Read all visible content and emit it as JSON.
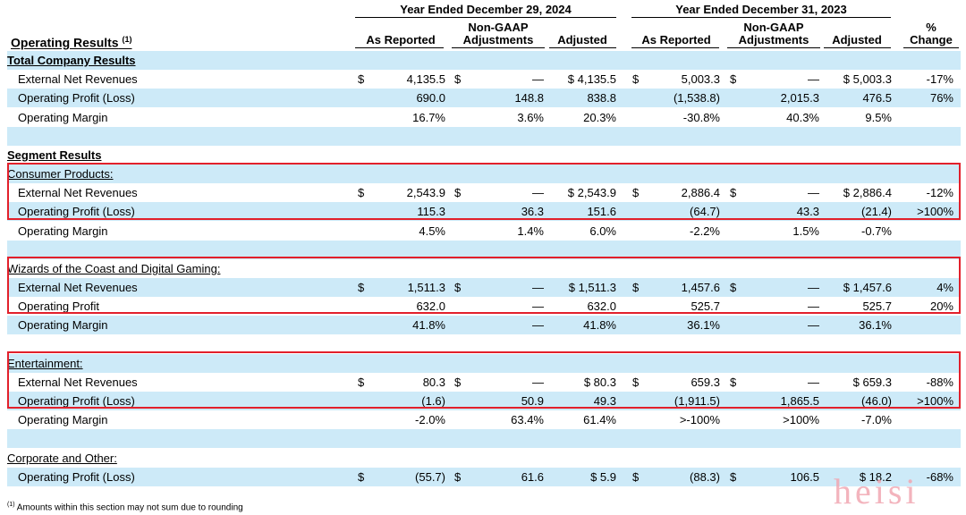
{
  "header": {
    "period_2024": "Year Ended December 29, 2024",
    "period_2023": "Year Ended December 31, 2023",
    "section_title": "Operating Results",
    "section_title_sup": "(1)",
    "col_as_reported": "As Reported",
    "col_non_gaap_line1": "Non-GAAP",
    "col_non_gaap_line2": "Adjustments",
    "col_adjusted": "Adjusted",
    "col_pct_line1": "%",
    "col_pct_line2": "Change"
  },
  "rows": [
    {
      "label": "Total Company Results",
      "style": "section"
    },
    {
      "label": "External Net Revenues",
      "values": [
        "$",
        "4,135.5",
        "$",
        "—",
        "$ 4,135.5",
        "$",
        "5,003.3",
        "$",
        "—",
        "$ 5,003.3",
        "-17%"
      ]
    },
    {
      "label": "Operating Profit (Loss)",
      "values": [
        "",
        "690.0",
        "",
        "148.8",
        "838.8",
        "",
        "(1,538.8)",
        "",
        "2,015.3",
        "476.5",
        "76%"
      ]
    },
    {
      "label": "Operating Margin",
      "values": [
        "",
        "16.7%",
        "",
        "3.6%",
        "20.3%",
        "",
        "-30.8%",
        "",
        "40.3%",
        "9.5%",
        ""
      ]
    },
    {
      "label": "",
      "values": []
    },
    {
      "label": "Segment Results",
      "style": "section"
    },
    {
      "label": "Consumer Products:",
      "style": "segment"
    },
    {
      "label": "External Net Revenues",
      "values": [
        "$",
        "2,543.9",
        "$",
        "—",
        "$ 2,543.9",
        "$",
        "2,886.4",
        "$",
        "—",
        "$ 2,886.4",
        "-12%"
      ]
    },
    {
      "label": "Operating Profit (Loss)",
      "values": [
        "",
        "115.3",
        "",
        "36.3",
        "151.6",
        "",
        "(64.7)",
        "",
        "43.3",
        "(21.4)",
        ">100%"
      ]
    },
    {
      "label": "Operating Margin",
      "values": [
        "",
        "4.5%",
        "",
        "1.4%",
        "6.0%",
        "",
        "-2.2%",
        "",
        "1.5%",
        "-0.7%",
        ""
      ]
    },
    {
      "label": "",
      "values": []
    },
    {
      "label": "Wizards of the Coast and Digital Gaming:",
      "style": "segment"
    },
    {
      "label": "External Net Revenues",
      "values": [
        "$",
        "1,511.3",
        "$",
        "—",
        "$ 1,511.3",
        "$",
        "1,457.6",
        "$",
        "—",
        "$ 1,457.6",
        "4%"
      ]
    },
    {
      "label": "Operating Profit",
      "values": [
        "",
        "632.0",
        "",
        "—",
        "632.0",
        "",
        "525.7",
        "",
        "—",
        "525.7",
        "20%"
      ]
    },
    {
      "label": "Operating Margin",
      "values": [
        "",
        "41.8%",
        "",
        "—",
        "41.8%",
        "",
        "36.1%",
        "",
        "—",
        "36.1%",
        ""
      ]
    },
    {
      "label": "",
      "values": []
    },
    {
      "label": "Entertainment:",
      "style": "segment"
    },
    {
      "label": "External Net Revenues",
      "values": [
        "$",
        "80.3",
        "$",
        "—",
        "$ 80.3",
        "$",
        "659.3",
        "$",
        "—",
        "$ 659.3",
        "-88%"
      ]
    },
    {
      "label": "Operating Profit (Loss)",
      "values": [
        "",
        "(1.6)",
        "",
        "50.9",
        "49.3",
        "",
        "(1,911.5)",
        "",
        "1,865.5",
        "(46.0)",
        ">100%"
      ]
    },
    {
      "label": "Operating Margin",
      "values": [
        "",
        "-2.0%",
        "",
        "63.4%",
        "61.4%",
        "",
        ">-100%",
        "",
        ">100%",
        "-7.0%",
        ""
      ]
    },
    {
      "label": "",
      "values": []
    },
    {
      "label": "Corporate and Other:",
      "style": "segment"
    },
    {
      "label": "Operating Profit (Loss)",
      "values": [
        "$",
        "(55.7)",
        "$",
        "61.6",
        "$ 5.9",
        "$",
        "(88.3)",
        "$",
        "106.5",
        "$ 18.2",
        "-68%"
      ]
    }
  ],
  "footnote": {
    "marker": "(1)",
    "text": "Amounts within this section may not sum due to rounding"
  },
  "watermark": "heisi",
  "colors": {
    "row_shade": "#cdeaf8",
    "highlight_box": "#e2202b"
  }
}
